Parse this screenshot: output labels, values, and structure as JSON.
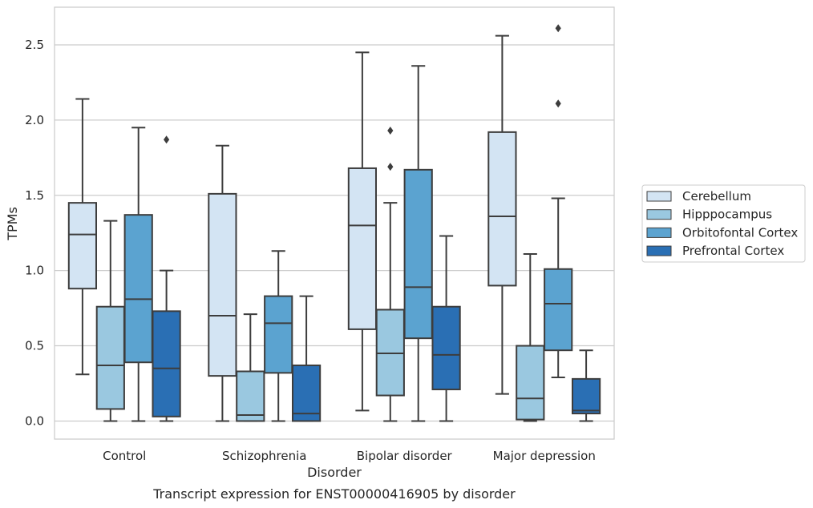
{
  "chart_data": {
    "type": "boxplot",
    "caption": "Transcript expression for ENST00000416905 by disorder",
    "xlabel": "Disorder",
    "ylabel": "TPMs",
    "ylim": [
      -0.12,
      2.75
    ],
    "yticks": [
      "0.0",
      "0.5",
      "1.0",
      "1.5",
      "2.0",
      "2.5"
    ],
    "ytick_values": [
      0,
      0.5,
      1.0,
      1.5,
      2.0,
      2.5
    ],
    "grid": true,
    "legend_position": "right",
    "categories": [
      "Control",
      "Schizophrenia",
      "Bipolar disorder",
      "Major depression"
    ],
    "series": [
      {
        "name": "Cerebellum",
        "color": "#d3e4f3",
        "boxes": [
          {
            "whisker_low": 0.31,
            "q1": 0.88,
            "median": 1.24,
            "q3": 1.45,
            "whisker_high": 2.14,
            "outliers": []
          },
          {
            "whisker_low": 0.0,
            "q1": 0.3,
            "median": 0.7,
            "q3": 1.51,
            "whisker_high": 1.83,
            "outliers": []
          },
          {
            "whisker_low": 0.07,
            "q1": 0.61,
            "median": 1.3,
            "q3": 1.68,
            "whisker_high": 2.45,
            "outliers": []
          },
          {
            "whisker_low": 0.18,
            "q1": 0.9,
            "median": 1.36,
            "q3": 1.92,
            "whisker_high": 2.56,
            "outliers": []
          }
        ]
      },
      {
        "name": "Hipppocampus",
        "color": "#9ac8e0",
        "boxes": [
          {
            "whisker_low": 0.0,
            "q1": 0.08,
            "median": 0.37,
            "q3": 0.76,
            "whisker_high": 1.33,
            "outliers": []
          },
          {
            "whisker_low": 0.0,
            "q1": 0.0,
            "median": 0.04,
            "q3": 0.33,
            "whisker_high": 0.71,
            "outliers": []
          },
          {
            "whisker_low": 0.0,
            "q1": 0.17,
            "median": 0.45,
            "q3": 0.74,
            "whisker_high": 1.45,
            "outliers": [
              1.69,
              1.93
            ]
          },
          {
            "whisker_low": 0.0,
            "q1": 0.01,
            "median": 0.15,
            "q3": 0.5,
            "whisker_high": 1.11,
            "outliers": []
          }
        ]
      },
      {
        "name": "Orbitofontal Cortex",
        "color": "#5ba3d0",
        "boxes": [
          {
            "whisker_low": 0.0,
            "q1": 0.39,
            "median": 0.81,
            "q3": 1.37,
            "whisker_high": 1.95,
            "outliers": []
          },
          {
            "whisker_low": 0.0,
            "q1": 0.32,
            "median": 0.65,
            "q3": 0.83,
            "whisker_high": 1.13,
            "outliers": []
          },
          {
            "whisker_low": 0.0,
            "q1": 0.55,
            "median": 0.89,
            "q3": 1.67,
            "whisker_high": 2.36,
            "outliers": []
          },
          {
            "whisker_low": 0.29,
            "q1": 0.47,
            "median": 0.78,
            "q3": 1.01,
            "whisker_high": 1.48,
            "outliers": [
              2.11,
              2.61
            ]
          }
        ]
      },
      {
        "name": "Prefrontal Cortex",
        "color": "#2a6fb4",
        "boxes": [
          {
            "whisker_low": 0.0,
            "q1": 0.03,
            "median": 0.35,
            "q3": 0.73,
            "whisker_high": 1.0,
            "outliers": [
              1.87
            ]
          },
          {
            "whisker_low": 0.0,
            "q1": 0.0,
            "median": 0.05,
            "q3": 0.37,
            "whisker_high": 0.83,
            "outliers": []
          },
          {
            "whisker_low": 0.0,
            "q1": 0.21,
            "median": 0.44,
            "q3": 0.76,
            "whisker_high": 1.23,
            "outliers": []
          },
          {
            "whisker_low": 0.0,
            "q1": 0.05,
            "median": 0.07,
            "q3": 0.28,
            "whisker_high": 0.47,
            "outliers": []
          }
        ]
      }
    ]
  }
}
